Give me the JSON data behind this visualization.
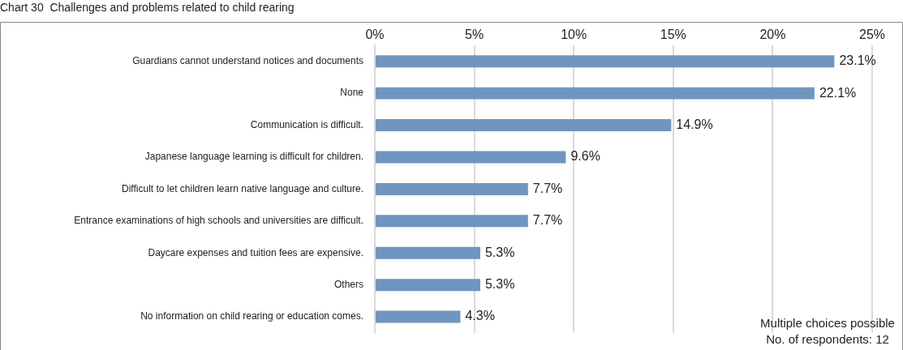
{
  "chart_data": {
    "type": "bar",
    "orientation": "horizontal",
    "title": "Chart 30  Challenges and problems related to child rearing",
    "categories": [
      "Guardians cannot understand notices and documents",
      "None",
      "Communication is difficult.",
      "Japanese language learning is difficult for children.",
      "Difficult to let children learn native language and culture.",
      "Entrance examinations of high schools and universities are difficult.",
      "Daycare expenses and tuition fees are expensive.",
      "Others",
      "No information on child rearing or education comes."
    ],
    "values": [
      23.1,
      22.1,
      14.9,
      9.6,
      7.7,
      7.7,
      5.3,
      5.3,
      4.3
    ],
    "value_labels": [
      "23.1%",
      "22.1%",
      "14.9%",
      "9.6%",
      "7.7%",
      "7.7%",
      "5.3%",
      "5.3%",
      "4.3%"
    ],
    "color": "#7096c0",
    "xlim": [
      0,
      25
    ],
    "xticks": [
      {
        "value": 0,
        "label": "0%"
      },
      {
        "value": 5,
        "label": "5%"
      },
      {
        "value": 10,
        "label": "10%"
      },
      {
        "value": 15,
        "label": "15%"
      },
      {
        "value": 20,
        "label": "20%"
      },
      {
        "value": 25,
        "label": "25%"
      }
    ],
    "grid": "x",
    "legend": false,
    "annotations": [
      "Multiple choices possible",
      "No. of respondents: 12"
    ]
  }
}
